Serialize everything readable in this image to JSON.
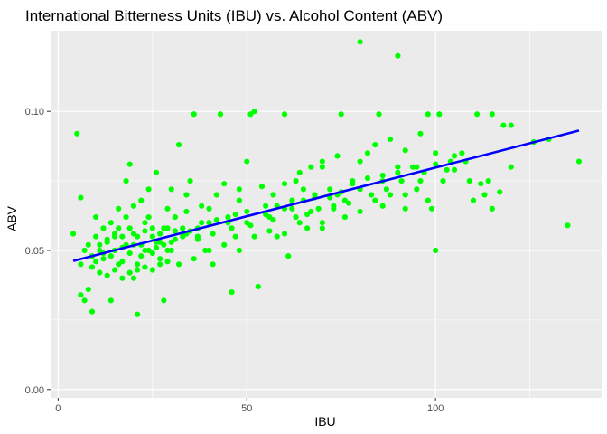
{
  "chart_data": {
    "type": "scatter",
    "title": "International Bitterness Units (IBU) vs. Alcohol Content (ABV)",
    "xlabel": "IBU",
    "ylabel": "ABV",
    "xlim": [
      -2,
      144
    ],
    "ylim": [
      -0.003,
      0.129
    ],
    "x_ticks": [
      0,
      50,
      100
    ],
    "x_tick_labels": [
      "0",
      "50",
      "100"
    ],
    "y_ticks": [
      0.0,
      0.05,
      0.1
    ],
    "y_tick_labels": [
      "0.00",
      "0.05",
      "0.10"
    ],
    "grid": true,
    "legend": "none",
    "colors": {
      "points": "#00ff00",
      "trend_line": "#0000ff",
      "panel_background": "#ebebeb",
      "grid": "#ffffff"
    },
    "series": [
      {
        "type": "scatter",
        "points": [
          [
            4,
            0.056
          ],
          [
            5,
            0.092
          ],
          [
            6,
            0.069
          ],
          [
            6,
            0.034
          ],
          [
            7,
            0.032
          ],
          [
            8,
            0.036
          ],
          [
            9,
            0.028
          ],
          [
            10,
            0.046
          ],
          [
            11,
            0.05
          ],
          [
            12,
            0.047
          ],
          [
            13,
            0.053
          ],
          [
            14,
            0.032
          ],
          [
            15,
            0.055
          ],
          [
            16,
            0.058
          ],
          [
            17,
            0.051
          ],
          [
            18,
            0.075
          ],
          [
            19,
            0.081
          ],
          [
            20,
            0.052
          ],
          [
            20,
            0.04
          ],
          [
            21,
            0.045
          ],
          [
            21,
            0.027
          ],
          [
            22,
            0.048
          ],
          [
            23,
            0.05
          ],
          [
            23,
            0.06
          ],
          [
            24,
            0.062
          ],
          [
            25,
            0.055
          ],
          [
            26,
            0.053
          ],
          [
            27,
            0.047
          ],
          [
            28,
            0.032
          ],
          [
            28,
            0.058
          ],
          [
            29,
            0.065
          ],
          [
            30,
            0.05
          ],
          [
            31,
            0.062
          ],
          [
            32,
            0.088
          ],
          [
            33,
            0.055
          ],
          [
            34,
            0.07
          ],
          [
            35,
            0.075
          ],
          [
            36,
            0.099
          ],
          [
            37,
            0.055
          ],
          [
            38,
            0.06
          ],
          [
            39,
            0.05
          ],
          [
            40,
            0.065
          ],
          [
            41,
            0.045
          ],
          [
            42,
            0.07
          ],
          [
            43,
            0.099
          ],
          [
            45,
            0.06
          ],
          [
            46,
            0.035
          ],
          [
            47,
            0.055
          ],
          [
            48,
            0.068
          ],
          [
            50,
            0.082
          ],
          [
            50,
            0.06
          ],
          [
            51,
            0.099
          ],
          [
            52,
            0.1
          ],
          [
            53,
            0.037
          ],
          [
            55,
            0.066
          ],
          [
            56,
            0.062
          ],
          [
            57,
            0.07
          ],
          [
            58,
            0.055
          ],
          [
            60,
            0.099
          ],
          [
            60,
            0.065
          ],
          [
            61,
            0.048
          ],
          [
            62,
            0.068
          ],
          [
            63,
            0.075
          ],
          [
            64,
            0.06
          ],
          [
            65,
            0.072
          ],
          [
            66,
            0.063
          ],
          [
            67,
            0.08
          ],
          [
            68,
            0.069
          ],
          [
            69,
            0.065
          ],
          [
            70,
            0.082
          ],
          [
            70,
            0.058
          ],
          [
            72,
            0.072
          ],
          [
            73,
            0.065
          ],
          [
            74,
            0.07
          ],
          [
            75,
            0.099
          ],
          [
            76,
            0.068
          ],
          [
            78,
            0.075
          ],
          [
            80,
            0.125
          ],
          [
            80,
            0.072
          ],
          [
            82,
            0.085
          ],
          [
            84,
            0.068
          ],
          [
            85,
            0.099
          ],
          [
            86,
            0.075
          ],
          [
            88,
            0.07
          ],
          [
            90,
            0.12
          ],
          [
            90,
            0.08
          ],
          [
            92,
            0.065
          ],
          [
            94,
            0.08
          ],
          [
            95,
            0.072
          ],
          [
            96,
            0.075
          ],
          [
            98,
            0.099
          ],
          [
            99,
            0.065
          ],
          [
            100,
            0.05
          ],
          [
            100,
            0.085
          ],
          [
            101,
            0.099
          ],
          [
            102,
            0.075
          ],
          [
            104,
            0.082
          ],
          [
            105,
            0.079
          ],
          [
            107,
            0.085
          ],
          [
            109,
            0.075
          ],
          [
            110,
            0.068
          ],
          [
            111,
            0.099
          ],
          [
            113,
            0.07
          ],
          [
            114,
            0.075
          ],
          [
            115,
            0.099
          ],
          [
            115,
            0.065
          ],
          [
            118,
            0.095
          ],
          [
            120,
            0.08
          ],
          [
            120,
            0.095
          ],
          [
            126,
            0.089
          ],
          [
            130,
            0.09
          ],
          [
            135,
            0.059
          ],
          [
            138,
            0.082
          ],
          [
            8,
            0.052
          ],
          [
            10,
            0.055
          ],
          [
            12,
            0.049
          ],
          [
            14,
            0.048
          ],
          [
            15,
            0.05
          ],
          [
            16,
            0.045
          ],
          [
            17,
            0.046
          ],
          [
            18,
            0.052
          ],
          [
            19,
            0.049
          ],
          [
            20,
            0.056
          ],
          [
            22,
            0.052
          ],
          [
            24,
            0.05
          ],
          [
            25,
            0.049
          ],
          [
            26,
            0.051
          ],
          [
            27,
            0.053
          ],
          [
            28,
            0.052
          ],
          [
            29,
            0.05
          ],
          [
            30,
            0.053
          ],
          [
            31,
            0.054
          ],
          [
            33,
            0.058
          ],
          [
            35,
            0.057
          ],
          [
            37,
            0.058
          ],
          [
            40,
            0.06
          ],
          [
            42,
            0.061
          ],
          [
            45,
            0.062
          ],
          [
            47,
            0.063
          ],
          [
            50,
            0.064
          ],
          [
            55,
            0.063
          ],
          [
            58,
            0.066
          ],
          [
            62,
            0.065
          ],
          [
            65,
            0.068
          ],
          [
            68,
            0.07
          ],
          [
            72,
            0.069
          ],
          [
            75,
            0.071
          ],
          [
            78,
            0.074
          ],
          [
            82,
            0.076
          ],
          [
            86,
            0.077
          ],
          [
            90,
            0.078
          ],
          [
            95,
            0.08
          ],
          [
            100,
            0.081
          ],
          [
            105,
            0.084
          ],
          [
            10,
            0.062
          ],
          [
            12,
            0.058
          ],
          [
            14,
            0.06
          ],
          [
            16,
            0.065
          ],
          [
            18,
            0.062
          ],
          [
            20,
            0.066
          ],
          [
            22,
            0.068
          ],
          [
            24,
            0.072
          ],
          [
            26,
            0.078
          ],
          [
            30,
            0.072
          ],
          [
            34,
            0.064
          ],
          [
            38,
            0.066
          ],
          [
            44,
            0.074
          ],
          [
            48,
            0.072
          ],
          [
            54,
            0.073
          ],
          [
            60,
            0.074
          ],
          [
            64,
            0.078
          ],
          [
            70,
            0.08
          ],
          [
            74,
            0.084
          ],
          [
            80,
            0.082
          ],
          [
            84,
            0.088
          ],
          [
            88,
            0.09
          ],
          [
            92,
            0.086
          ],
          [
            96,
            0.092
          ],
          [
            9,
            0.044
          ],
          [
            11,
            0.042
          ],
          [
            13,
            0.041
          ],
          [
            15,
            0.043
          ],
          [
            17,
            0.04
          ],
          [
            19,
            0.042
          ],
          [
            21,
            0.043
          ],
          [
            23,
            0.044
          ],
          [
            25,
            0.043
          ],
          [
            27,
            0.045
          ],
          [
            29,
            0.046
          ],
          [
            32,
            0.045
          ],
          [
            36,
            0.047
          ],
          [
            40,
            0.05
          ],
          [
            44,
            0.052
          ],
          [
            48,
            0.05
          ],
          [
            52,
            0.055
          ],
          [
            56,
            0.057
          ],
          [
            60,
            0.056
          ],
          [
            66,
            0.058
          ],
          [
            70,
            0.06
          ],
          [
            76,
            0.062
          ],
          [
            80,
            0.064
          ],
          [
            86,
            0.066
          ],
          [
            92,
            0.07
          ],
          [
            98,
            0.068
          ],
          [
            6,
            0.045
          ],
          [
            7,
            0.05
          ],
          [
            9,
            0.048
          ],
          [
            11,
            0.052
          ],
          [
            13,
            0.054
          ],
          [
            15,
            0.056
          ],
          [
            17,
            0.055
          ],
          [
            19,
            0.058
          ],
          [
            21,
            0.055
          ],
          [
            23,
            0.057
          ],
          [
            25,
            0.058
          ],
          [
            27,
            0.056
          ],
          [
            29,
            0.058
          ],
          [
            31,
            0.057
          ],
          [
            34,
            0.056
          ],
          [
            37,
            0.054
          ],
          [
            41,
            0.056
          ],
          [
            46,
            0.058
          ],
          [
            51,
            0.059
          ],
          [
            57,
            0.061
          ],
          [
            63,
            0.062
          ],
          [
            67,
            0.064
          ],
          [
            73,
            0.066
          ],
          [
            77,
            0.067
          ],
          [
            83,
            0.07
          ],
          [
            87,
            0.072
          ],
          [
            91,
            0.075
          ],
          [
            97,
            0.078
          ],
          [
            103,
            0.079
          ],
          [
            108,
            0.082
          ],
          [
            112,
            0.074
          ],
          [
            117,
            0.071
          ]
        ]
      },
      {
        "type": "line",
        "points": [
          [
            4,
            0.0462
          ],
          [
            138,
            0.0931
          ]
        ]
      }
    ]
  }
}
